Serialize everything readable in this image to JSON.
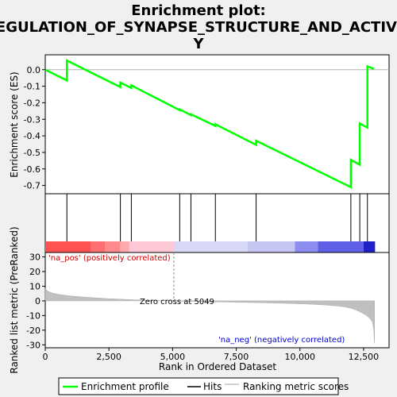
{
  "window": {
    "title_lines": [
      "Enrichment plot:",
      "REGULATION_OF_SYNAPSE_STRUCTURE_AND_ACTIVIT",
      "Y"
    ]
  },
  "chart_data": {
    "type": "line",
    "title": "Enrichment plot: REGULATION_OF_SYNAPSE_STRUCTURE_AND_ACTIVITY",
    "xlabel": "Rank in Ordered Dataset",
    "xlim": [
      0,
      13500
    ],
    "x_ticks": [
      0,
      2500,
      5000,
      7500,
      10000,
      12500
    ],
    "x_tick_labels": [
      "0",
      "2,500",
      "5,000",
      "7,500",
      "10,000",
      "12,500"
    ],
    "es_panel": {
      "ylabel": "Enrichment score (ES)",
      "ylim": [
        -0.75,
        0.09
      ],
      "y_ticks": [
        0.0,
        -0.1,
        -0.2,
        -0.3,
        -0.4,
        -0.5,
        -0.6,
        -0.7
      ],
      "y_tick_labels": [
        "0.0",
        "-0.1",
        "-0.2",
        "-0.3",
        "-0.4",
        "-0.5",
        "-0.6",
        "-0.7"
      ],
      "series": [
        {
          "name": "Enrichment profile",
          "color": "#00ff00",
          "x": [
            0,
            850,
            850,
            2950,
            2950,
            3380,
            3380,
            5280,
            5280,
            5720,
            5720,
            6680,
            6680,
            8280,
            8280,
            12000,
            12000,
            12350,
            12350,
            12650,
            12650,
            12900
          ],
          "y": [
            0.0,
            -0.065,
            0.055,
            -0.105,
            -0.078,
            -0.11,
            -0.095,
            -0.245,
            -0.24,
            -0.275,
            -0.27,
            -0.34,
            -0.33,
            -0.455,
            -0.43,
            -0.71,
            -0.545,
            -0.575,
            -0.325,
            -0.35,
            0.02,
            0.005
          ]
        }
      ]
    },
    "hits": {
      "name": "Hits",
      "x": [
        850,
        2950,
        3380,
        5280,
        5720,
        6680,
        8280,
        12000,
        12350,
        12650
      ]
    },
    "color_bar": {
      "segments": [
        {
          "x0": 0,
          "x1": 1800,
          "color": "#ff5252"
        },
        {
          "x0": 1800,
          "x1": 2350,
          "color": "#ff6e70"
        },
        {
          "x0": 2350,
          "x1": 2950,
          "color": "#ff8a8e"
        },
        {
          "x0": 2950,
          "x1": 3300,
          "color": "#ffa8ae"
        },
        {
          "x0": 3300,
          "x1": 5050,
          "color": "#ffc8d6"
        },
        {
          "x0": 5050,
          "x1": 7950,
          "color": "#d8d8f6"
        },
        {
          "x0": 7950,
          "x1": 9800,
          "color": "#c6c6f2"
        },
        {
          "x0": 9800,
          "x1": 10700,
          "color": "#8e8ef0"
        },
        {
          "x0": 10700,
          "x1": 12500,
          "color": "#6060e6"
        },
        {
          "x0": 12500,
          "x1": 12950,
          "color": "#2020c8"
        }
      ]
    },
    "metric_panel": {
      "ylabel": "Ranked list metric (PreRanked)",
      "ylim": [
        -32,
        33
      ],
      "y_ticks": [
        30,
        20,
        10,
        0,
        -10,
        -20,
        -30
      ],
      "y_tick_labels": [
        "30",
        "20",
        "10",
        "0",
        "-10",
        "-20",
        "-30"
      ],
      "series": [
        {
          "name": "Ranking metric scores",
          "color": "#c0c0c0",
          "x": [
            0,
            100,
            300,
            600,
            1000,
            1500,
            2000,
            2500,
            3000,
            3500,
            4000,
            4500,
            5049,
            5500,
            6500,
            7500,
            8500,
            9500,
            10500,
            11000,
            11500,
            11800,
            12000,
            12200,
            12400,
            12600,
            12750,
            12850,
            12900,
            12930
          ],
          "y": [
            8.5,
            6.5,
            5.2,
            4.2,
            3.3,
            2.6,
            2.0,
            1.5,
            1.1,
            0.7,
            0.4,
            0.2,
            0.0,
            -0.3,
            -0.6,
            -0.9,
            -1.3,
            -1.7,
            -2.3,
            -2.8,
            -3.5,
            -4.2,
            -5.0,
            -6.2,
            -7.8,
            -9.8,
            -12.0,
            -14.5,
            -20.0,
            -29.0
          ]
        }
      ],
      "zero_cross": {
        "x": 5049,
        "label": "Zero cross at 5049"
      },
      "pos_label": "'na_pos' (positively correlated)",
      "neg_label": "'na_neg' (negatively correlated)",
      "pos_color": "#cc0000",
      "neg_color": "#0000cc"
    },
    "legend": {
      "placement": "bottom",
      "entries": [
        {
          "label": "Enrichment profile",
          "color": "#00ff00"
        },
        {
          "label": "Hits",
          "color": "#000000"
        },
        {
          "label": "Ranking metric scores",
          "color": "#c0c0c0"
        }
      ]
    }
  }
}
